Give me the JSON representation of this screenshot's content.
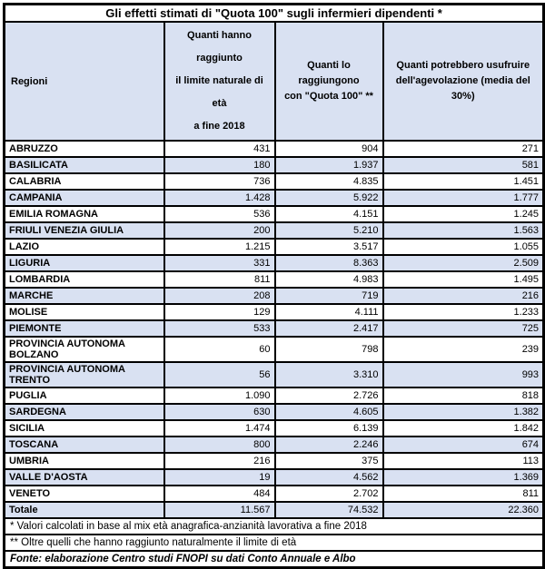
{
  "colors": {
    "band_and_header_background": "#d9e1f2",
    "border": "#000000",
    "text": "#000000",
    "page_background": "#ffffff"
  },
  "footnotes": [
    "* Valori calcolati in base al mix età anagrafica-anzianità lavorativa a fine 2018",
    "** Oltre quelli che hanno raggiunto naturalmente il limite di età"
  ],
  "source": "Fonte: elaborazione Centro studi FNOPI su dati Conto Annuale e Albo",
  "chart_data": {
    "type": "table",
    "title": "Gli effetti stimati di \"Quota 100\" sugli infermieri dipendenti *",
    "columns": [
      {
        "label": "Regioni"
      },
      {
        "label": "Quanti hanno raggiunto\nil limite naturale di età\na fine 2018"
      },
      {
        "label": "Quanti lo raggiungono\ncon \"Quota 100\" **"
      },
      {
        "label": "Quanti potrebbero usufruire\ndell'agevolazione (media del 30%)"
      }
    ],
    "rows": [
      [
        "ABRUZZO",
        "431",
        "904",
        "271"
      ],
      [
        "BASILICATA",
        "180",
        "1.937",
        "581"
      ],
      [
        "CALABRIA",
        "736",
        "4.835",
        "1.451"
      ],
      [
        "CAMPANIA",
        "1.428",
        "5.922",
        "1.777"
      ],
      [
        "EMILIA ROMAGNA",
        "536",
        "4.151",
        "1.245"
      ],
      [
        "FRIULI VENEZIA GIULIA",
        "200",
        "5.210",
        "1.563"
      ],
      [
        "LAZIO",
        "1.215",
        "3.517",
        "1.055"
      ],
      [
        "LIGURIA",
        "331",
        "8.363",
        "2.509"
      ],
      [
        "LOMBARDIA",
        "811",
        "4.983",
        "1.495"
      ],
      [
        "MARCHE",
        "208",
        "719",
        "216"
      ],
      [
        "MOLISE",
        "129",
        "4.111",
        "1.233"
      ],
      [
        "PIEMONTE",
        "533",
        "2.417",
        "725"
      ],
      [
        "PROVINCIA AUTONOMA BOLZANO",
        "60",
        "798",
        "239"
      ],
      [
        "PROVINCIA AUTONOMA TRENTO",
        "56",
        "3.310",
        "993"
      ],
      [
        "PUGLIA",
        "1.090",
        "2.726",
        "818"
      ],
      [
        "SARDEGNA",
        "630",
        "4.605",
        "1.382"
      ],
      [
        "SICILIA",
        "1.474",
        "6.139",
        "1.842"
      ],
      [
        "TOSCANA",
        "800",
        "2.246",
        "674"
      ],
      [
        "UMBRIA",
        "216",
        "375",
        "113"
      ],
      [
        "VALLE D'AOSTA",
        "19",
        "4.562",
        "1.369"
      ],
      [
        "VENETO",
        "484",
        "2.702",
        "811"
      ]
    ],
    "total_row": [
      "Totale",
      "11.567",
      "74.532",
      "22.360"
    ]
  }
}
